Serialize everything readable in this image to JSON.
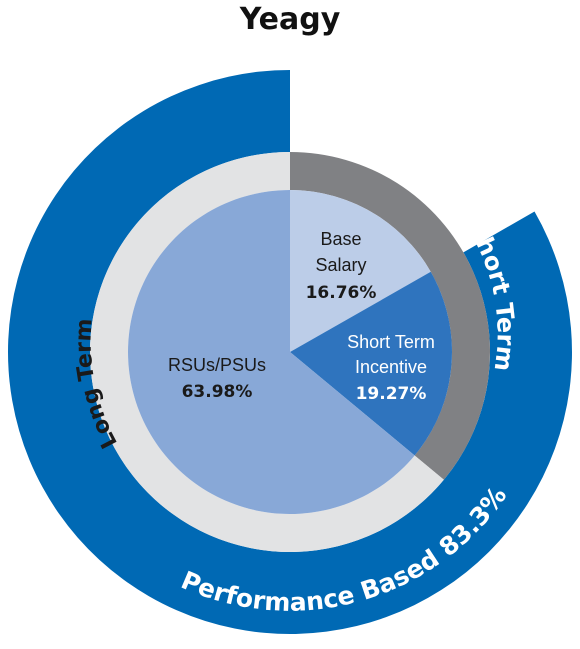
{
  "chart_data": {
    "type": "pie",
    "title": "Yeagy",
    "inner": [
      {
        "name": "Base Salary",
        "value": 16.76,
        "value_label": "16.76%",
        "color": "#bccde8",
        "text_color": "#1a1a1a"
      },
      {
        "name": "Short Term Incentive",
        "value": 19.27,
        "value_label": "19.27%",
        "color": "#2f74be",
        "text_color": "#ffffff"
      },
      {
        "name": "RSUs/PSUs",
        "value": 63.98,
        "value_label": "63.98%",
        "color": "#88a8d7",
        "text_color": "#1a1a1a"
      }
    ],
    "middle_ring": [
      {
        "name": "Short Term",
        "color": "#808184"
      },
      {
        "name": "Long Term",
        "color": "#e2e3e4"
      }
    ],
    "outer_ring": {
      "label": "Performance Based 83.3%",
      "value": 83.3,
      "color": "#0069b4"
    }
  }
}
